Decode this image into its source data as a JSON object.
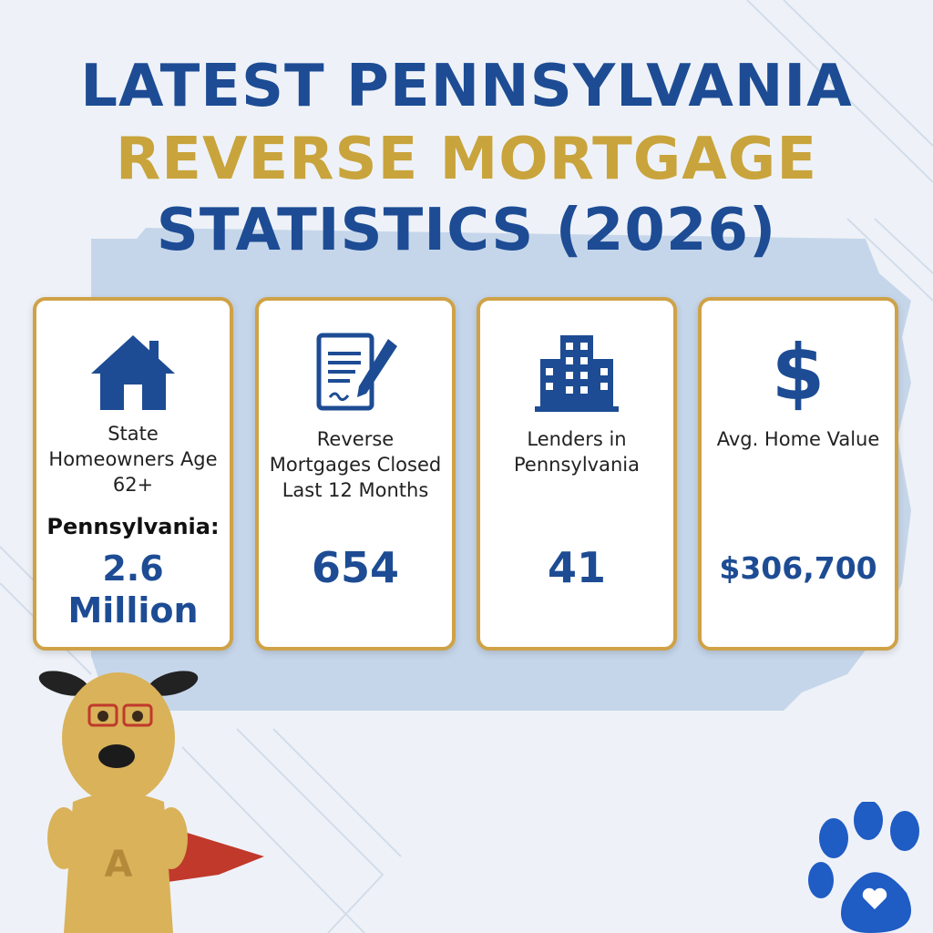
{
  "title": {
    "line1": "LATEST PENNSYLVANIA",
    "line2": "REVERSE MORTGAGE",
    "line3": "STATISTICS (2026)"
  },
  "cards": [
    {
      "icon": "house-icon",
      "label": "State Homeowners Age 62+",
      "sub": "Pennsylvania:",
      "value_line1": "2.6",
      "value_line2": "Million"
    },
    {
      "icon": "signed-document-icon",
      "label": "Reverse Mortgages Closed Last 12 Months",
      "value": "654"
    },
    {
      "icon": "office-building-icon",
      "label": "Lenders in Pennsylvania",
      "value": "41"
    },
    {
      "icon": "dollar-sign-icon",
      "label": "Avg. Home Value",
      "value": "$306,700"
    }
  ],
  "mascot": {
    "chest_letter": "A"
  },
  "colors": {
    "primary_blue": "#1d4c94",
    "gold": "#c9a43c",
    "card_border": "#cfa247",
    "map_blue": "#c6d6ea",
    "background": "#eef2f8"
  }
}
